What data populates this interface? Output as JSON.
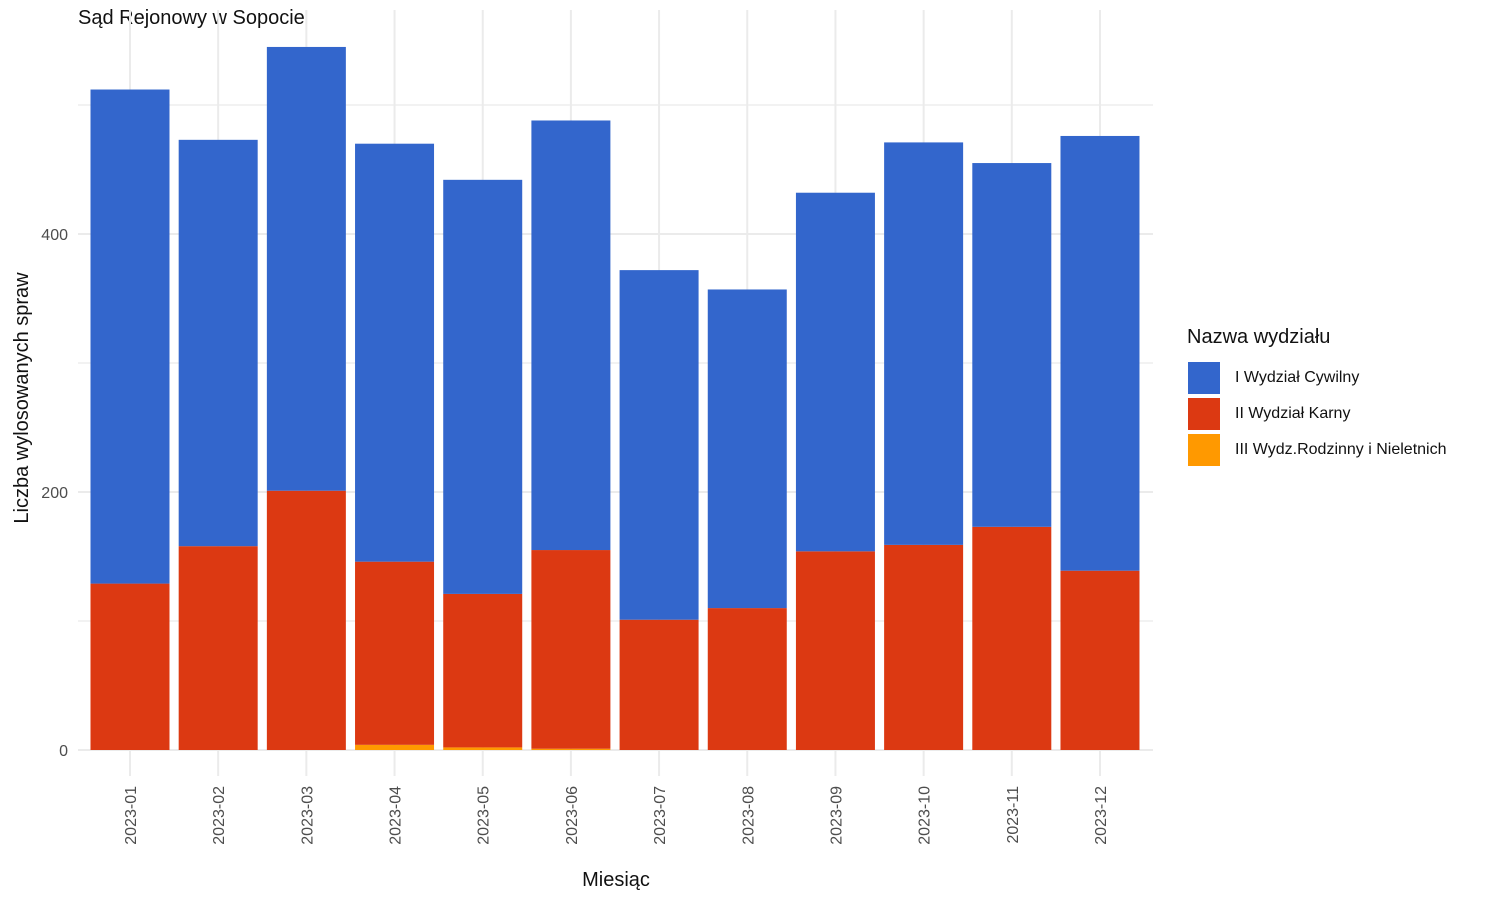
{
  "chart_data": {
    "type": "bar",
    "stacked": true,
    "title": "Sąd Rejonowy w Sopocie",
    "xlabel": "Miesiąc",
    "ylabel": "Liczba wylosowanych spraw",
    "ylim": [
      -22,
      572
    ],
    "yticks": [
      0,
      200,
      400
    ],
    "grid": true,
    "legend_title": "Nazwa wydziału",
    "legend_position": "right",
    "categories": [
      "2023-01",
      "2023-02",
      "2023-03",
      "2023-04",
      "2023-05",
      "2023-06",
      "2023-07",
      "2023-08",
      "2023-09",
      "2023-10",
      "2023-11",
      "2023-12"
    ],
    "series": [
      {
        "name": "III Wydz.Rodzinny i Nieletnich",
        "color": "#FF9900",
        "values": [
          0,
          0,
          0,
          4,
          2,
          1,
          0,
          0,
          0,
          0,
          0,
          0
        ]
      },
      {
        "name": "II Wydział Karny",
        "color": "#DC3912",
        "values": [
          129,
          158,
          201,
          142,
          119,
          154,
          101,
          110,
          154,
          159,
          173,
          139
        ]
      },
      {
        "name": "I Wydział Cywilny",
        "color": "#3366CC",
        "values": [
          383,
          315,
          344,
          324,
          321,
          333,
          271,
          247,
          278,
          312,
          282,
          337
        ]
      }
    ]
  },
  "legend_items": [
    {
      "label": "I Wydział Cywilny",
      "color": "#3366CC"
    },
    {
      "label": "II Wydział Karny",
      "color": "#DC3912"
    },
    {
      "label": "III Wydz.Rodzinny i Nieletnich",
      "color": "#FF9900"
    }
  ]
}
